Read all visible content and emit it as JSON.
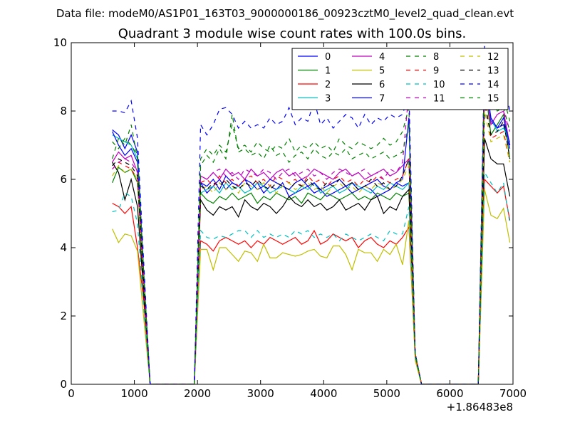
{
  "chart_data": {
    "type": "line",
    "suptitle": "Data file: modeM0/AS1P01_163T03_9000000186_00923cztM0_level2_quad_clean.evt",
    "title": "Quadrant 3 module wise count rates with 100.0s bins.",
    "xlabel": "",
    "ylabel": "",
    "x_offset_label": "+1.86483e8",
    "xlim": [
      0,
      7000
    ],
    "ylim": [
      0,
      10
    ],
    "xticks": [
      0,
      1000,
      2000,
      3000,
      4000,
      5000,
      6000,
      7000
    ],
    "yticks": [
      0,
      2,
      4,
      6,
      8,
      10
    ],
    "grid": false,
    "legend_position": "top-right",
    "legend_columns": 4,
    "x": [
      650,
      750,
      850,
      950,
      1050,
      1150,
      1250,
      1350,
      1450,
      1550,
      1650,
      1750,
      1850,
      1950,
      2050,
      2150,
      2250,
      2350,
      2450,
      2550,
      2650,
      2750,
      2850,
      2950,
      3050,
      3150,
      3250,
      3350,
      3450,
      3550,
      3650,
      3750,
      3850,
      3950,
      4050,
      4150,
      4250,
      4350,
      4450,
      4550,
      4650,
      4750,
      4850,
      4950,
      5050,
      5150,
      5250,
      5350,
      5450,
      5550,
      5650,
      5750,
      5850,
      5950,
      6050,
      6150,
      6250,
      6350,
      6450,
      6550,
      6650,
      6750,
      6850,
      6950
    ],
    "series": [
      {
        "name": "0",
        "color": "#0000ff",
        "dash": "solid",
        "values": [
          7.45,
          7.3,
          6.9,
          7.3,
          6.8,
          3.2,
          0,
          0,
          0,
          0,
          0,
          0,
          0,
          0,
          5.9,
          5.6,
          5.8,
          6.0,
          5.7,
          5.9,
          5.8,
          6.0,
          5.7,
          5.9,
          5.6,
          5.8,
          5.7,
          5.9,
          5.5,
          5.6,
          5.7,
          5.8,
          5.6,
          5.7,
          5.5,
          5.6,
          5.7,
          5.8,
          5.6,
          5.7,
          5.8,
          5.7,
          5.5,
          5.6,
          5.7,
          5.9,
          5.8,
          5.9,
          0.9,
          0,
          0,
          0,
          0,
          0,
          0,
          0,
          0,
          0,
          0,
          9.6,
          7.7,
          7.5,
          7.6,
          6.9
        ]
      },
      {
        "name": "1",
        "color": "#008000",
        "dash": "solid",
        "values": [
          5.9,
          6.35,
          6.2,
          6.3,
          5.9,
          2.8,
          0,
          0,
          0,
          0,
          0,
          0,
          0,
          0,
          5.6,
          5.4,
          5.3,
          5.5,
          5.4,
          5.6,
          5.4,
          5.5,
          5.6,
          5.3,
          5.5,
          5.4,
          5.6,
          5.5,
          5.4,
          5.5,
          5.3,
          5.6,
          5.5,
          5.4,
          5.6,
          5.5,
          5.4,
          5.5,
          5.6,
          5.4,
          5.5,
          5.4,
          5.6,
          5.5,
          5.4,
          5.6,
          5.5,
          5.6,
          0.9,
          0,
          0,
          0,
          0,
          0,
          0,
          0,
          0,
          0,
          0,
          8.9,
          7.3,
          7.6,
          7.9,
          6.6
        ]
      },
      {
        "name": "2",
        "color": "#ff0000",
        "dash": "solid",
        "values": [
          5.3,
          5.2,
          5.0,
          5.2,
          4.0,
          2.4,
          0,
          0,
          0,
          0,
          0,
          0,
          0,
          0,
          4.2,
          4.1,
          3.9,
          4.2,
          4.3,
          4.2,
          4.1,
          4.2,
          4.0,
          4.2,
          4.1,
          4.3,
          4.2,
          4.1,
          4.2,
          4.3,
          4.1,
          4.2,
          4.5,
          4.1,
          4.2,
          4.4,
          4.3,
          4.2,
          4.3,
          4.0,
          4.2,
          4.3,
          4.1,
          4.0,
          4.2,
          4.1,
          4.3,
          4.6,
          0.8,
          0,
          0,
          0,
          0,
          0,
          0,
          0,
          0,
          0,
          0,
          6.0,
          5.8,
          5.6,
          5.8,
          4.8
        ]
      },
      {
        "name": "3",
        "color": "#00bfbf",
        "dash": "solid",
        "values": [
          7.3,
          7.2,
          7.1,
          7.0,
          6.6,
          3.0,
          0,
          0,
          0,
          0,
          0,
          0,
          0,
          0,
          5.6,
          5.7,
          5.8,
          5.6,
          5.9,
          5.7,
          5.8,
          5.6,
          5.7,
          5.9,
          5.8,
          5.6,
          5.7,
          5.8,
          5.7,
          5.6,
          5.8,
          5.7,
          5.9,
          5.6,
          5.7,
          5.8,
          5.6,
          5.7,
          5.9,
          5.8,
          5.7,
          5.6,
          5.8,
          5.7,
          5.9,
          5.8,
          5.7,
          5.9,
          0.9,
          0,
          0,
          0,
          0,
          0,
          0,
          0,
          0,
          0,
          0,
          9.2,
          7.8,
          7.4,
          7.5,
          7.1
        ]
      },
      {
        "name": "4",
        "color": "#bf00bf",
        "dash": "solid",
        "values": [
          6.5,
          6.8,
          6.6,
          6.7,
          6.2,
          3.0,
          0,
          0,
          0,
          0,
          0,
          0,
          0,
          0,
          6.1,
          6.0,
          6.2,
          6.0,
          6.3,
          6.1,
          6.2,
          6.0,
          6.3,
          6.1,
          6.2,
          6.0,
          6.2,
          6.3,
          6.1,
          6.2,
          6.0,
          6.1,
          6.3,
          6.2,
          6.1,
          6.0,
          6.2,
          6.3,
          6.1,
          6.2,
          6.0,
          6.1,
          6.2,
          6.3,
          6.1,
          6.2,
          6.4,
          6.6,
          0.9,
          0,
          0,
          0,
          0,
          0,
          0,
          0,
          0,
          0,
          0,
          8.8,
          7.6,
          7.9,
          8.0,
          7.0
        ]
      },
      {
        "name": "5",
        "color": "#bfbf00",
        "dash": "solid",
        "values": [
          4.55,
          4.15,
          4.4,
          4.35,
          3.9,
          1.9,
          0,
          0,
          0,
          0,
          0,
          0,
          0,
          0,
          3.95,
          3.95,
          3.35,
          4.0,
          4.0,
          3.8,
          3.6,
          3.9,
          3.85,
          3.6,
          4.1,
          3.7,
          3.7,
          3.85,
          3.8,
          3.75,
          3.8,
          3.9,
          3.95,
          3.75,
          3.7,
          4.05,
          4.05,
          3.8,
          3.35,
          3.95,
          3.85,
          3.85,
          3.6,
          3.95,
          3.8,
          4.1,
          3.5,
          4.8,
          0.7,
          0,
          0,
          0,
          0,
          0,
          0,
          0,
          0,
          0,
          0,
          5.7,
          4.95,
          4.85,
          5.15,
          4.15
        ]
      },
      {
        "name": "6",
        "color": "#000000",
        "dash": "solid",
        "values": [
          6.5,
          6.2,
          5.4,
          6.0,
          5.2,
          2.6,
          0,
          0,
          0,
          0,
          0,
          0,
          0,
          0,
          5.4,
          5.1,
          4.95,
          5.2,
          5.1,
          5.2,
          4.9,
          5.4,
          5.2,
          5.1,
          5.3,
          5.2,
          5.0,
          5.2,
          5.5,
          5.3,
          5.2,
          5.4,
          5.2,
          5.3,
          5.1,
          5.2,
          5.4,
          5.1,
          5.2,
          5.3,
          5.1,
          5.4,
          5.5,
          5.0,
          5.2,
          5.1,
          5.5,
          5.7,
          0.9,
          0,
          0,
          0,
          0,
          0,
          0,
          0,
          0,
          0,
          0,
          7.2,
          6.6,
          6.45,
          6.45,
          5.5
        ]
      },
      {
        "name": "7",
        "color": "#0000ff",
        "dash": "solid",
        "values": [
          7.4,
          7.0,
          6.7,
          6.9,
          6.5,
          3.1,
          0,
          0,
          0,
          0,
          0,
          0,
          0,
          0,
          5.9,
          5.8,
          6.0,
          5.7,
          6.1,
          5.9,
          5.8,
          6.0,
          5.9,
          5.7,
          5.8,
          6.0,
          5.9,
          5.8,
          5.7,
          5.9,
          6.0,
          5.8,
          5.9,
          5.7,
          5.8,
          5.9,
          6.0,
          5.8,
          5.9,
          5.7,
          5.8,
          5.9,
          6.0,
          5.8,
          5.7,
          5.9,
          6.0,
          7.8,
          0.9,
          0,
          0,
          0,
          0,
          0,
          0,
          0,
          0,
          0,
          0,
          9.0,
          7.8,
          7.5,
          7.8,
          7.0
        ]
      },
      {
        "name": "8",
        "color": "#008000",
        "dash": "dashed",
        "values": [
          6.6,
          7.2,
          7.0,
          7.6,
          6.6,
          3.1,
          0,
          0,
          0,
          0,
          0,
          0,
          0,
          0,
          6.6,
          6.9,
          6.7,
          7.0,
          6.8,
          7.6,
          6.9,
          7.0,
          6.8,
          7.1,
          6.9,
          6.8,
          7.0,
          6.9,
          7.2,
          6.8,
          7.0,
          6.9,
          7.1,
          6.9,
          7.0,
          6.8,
          7.2,
          7.0,
          6.9,
          7.1,
          7.0,
          6.9,
          7.0,
          7.2,
          7.0,
          7.1,
          7.4,
          8.1,
          0.9,
          0,
          0,
          0,
          0,
          0,
          0,
          0,
          0,
          0,
          0,
          8.8,
          8.4,
          8.0,
          8.1,
          7.4
        ]
      },
      {
        "name": "9",
        "color": "#ff0000",
        "dash": "dashed",
        "values": [
          6.3,
          6.5,
          6.4,
          6.3,
          6.0,
          2.8,
          0,
          0,
          0,
          0,
          0,
          0,
          0,
          0,
          5.9,
          6.0,
          5.8,
          6.1,
          5.9,
          6.0,
          5.8,
          6.0,
          6.1,
          5.9,
          6.0,
          5.8,
          6.1,
          6.0,
          5.9,
          6.0,
          5.8,
          6.1,
          5.9,
          6.0,
          5.8,
          6.0,
          6.1,
          5.9,
          6.0,
          5.8,
          6.0,
          5.9,
          6.1,
          6.0,
          5.9,
          6.0,
          6.1,
          6.6,
          0.9,
          0,
          0,
          0,
          0,
          0,
          0,
          0,
          0,
          0,
          0,
          8.4,
          7.2,
          7.3,
          7.4,
          6.5
        ]
      },
      {
        "name": "10",
        "color": "#00bfbf",
        "dash": "dashed",
        "values": [
          5.05,
          5.1,
          5.6,
          5.5,
          4.7,
          2.2,
          0,
          0,
          0,
          0,
          0,
          0,
          0,
          0,
          4.5,
          4.3,
          4.25,
          4.35,
          4.3,
          4.4,
          4.5,
          4.5,
          4.3,
          4.5,
          4.3,
          4.4,
          4.3,
          4.4,
          4.3,
          4.5,
          4.4,
          4.5,
          4.3,
          4.4,
          4.3,
          4.4,
          4.2,
          4.4,
          4.3,
          4.2,
          4.3,
          4.4,
          4.3,
          4.2,
          4.5,
          4.4,
          4.4,
          5.2,
          0.8,
          0,
          0,
          0,
          0,
          0,
          0,
          0,
          0,
          0,
          0,
          6.2,
          5.9,
          5.6,
          5.9,
          4.7
        ]
      },
      {
        "name": "11",
        "color": "#bf00bf",
        "dash": "dashed",
        "values": [
          6.3,
          6.5,
          6.6,
          6.5,
          6.2,
          3.0,
          0,
          0,
          0,
          0,
          0,
          0,
          0,
          0,
          6.1,
          6.0,
          6.2,
          6.3,
          6.1,
          6.2,
          6.0,
          6.3,
          6.2,
          6.1,
          6.3,
          6.2,
          6.0,
          6.2,
          6.3,
          6.1,
          6.2,
          6.3,
          6.1,
          6.2,
          6.0,
          6.2,
          6.3,
          6.2,
          6.1,
          6.2,
          6.3,
          6.1,
          6.2,
          6.0,
          6.3,
          6.2,
          6.5,
          8.6,
          0.9,
          0,
          0,
          0,
          0,
          0,
          0,
          0,
          0,
          0,
          0,
          9.1,
          8.1,
          8.1,
          8.0,
          7.4
        ]
      },
      {
        "name": "12",
        "color": "#bfbf00",
        "dash": "dashed",
        "values": [
          6.1,
          6.4,
          6.2,
          6.3,
          6.0,
          2.9,
          0,
          0,
          0,
          0,
          0,
          0,
          0,
          0,
          5.7,
          5.8,
          5.6,
          5.9,
          5.7,
          5.8,
          5.6,
          5.9,
          5.8,
          5.7,
          5.9,
          5.8,
          5.6,
          5.8,
          5.9,
          5.7,
          5.8,
          5.9,
          5.7,
          5.8,
          5.6,
          5.8,
          5.9,
          5.7,
          5.8,
          5.6,
          5.8,
          5.7,
          5.9,
          5.8,
          5.7,
          5.8,
          6.0,
          6.4,
          0.9,
          0,
          0,
          0,
          0,
          0,
          0,
          0,
          0,
          0,
          0,
          8.0,
          7.1,
          7.2,
          7.3,
          6.5
        ]
      },
      {
        "name": "13",
        "color": "#000000",
        "dash": "dashed",
        "values": [
          6.4,
          6.6,
          6.5,
          6.4,
          6.1,
          2.9,
          0,
          0,
          0,
          0,
          0,
          0,
          0,
          0,
          5.8,
          5.7,
          5.9,
          5.8,
          6.0,
          5.8,
          5.7,
          5.9,
          5.8,
          6.0,
          5.8,
          5.7,
          5.9,
          5.8,
          5.7,
          5.9,
          5.8,
          6.0,
          5.8,
          5.7,
          5.9,
          5.8,
          6.0,
          5.8,
          5.9,
          5.7,
          5.8,
          6.0,
          5.8,
          5.9,
          5.7,
          5.8,
          6.1,
          6.6,
          0.9,
          0,
          0,
          0,
          0,
          0,
          0,
          0,
          0,
          0,
          0,
          8.2,
          7.3,
          7.4,
          7.7,
          6.6
        ]
      },
      {
        "name": "14",
        "color": "#0000ff",
        "dash": "dashed",
        "values": [
          8.0,
          8.0,
          7.95,
          8.3,
          7.2,
          3.5,
          0,
          0,
          0,
          0,
          0,
          0,
          0,
          0,
          7.6,
          7.3,
          7.6,
          8.05,
          8.1,
          7.9,
          7.5,
          7.7,
          7.5,
          7.6,
          7.5,
          7.8,
          7.6,
          7.7,
          8.1,
          7.6,
          7.8,
          7.7,
          8.3,
          7.6,
          7.8,
          7.5,
          7.7,
          7.9,
          7.8,
          7.5,
          7.9,
          7.6,
          7.8,
          7.7,
          7.9,
          7.8,
          7.9,
          8.5,
          0.9,
          0,
          0,
          0,
          0,
          0,
          0,
          0,
          0,
          0,
          0,
          9.9,
          9.1,
          8.5,
          8.9,
          8.0
        ]
      },
      {
        "name": "15",
        "color": "#008000",
        "dash": "dashed",
        "values": [
          7.1,
          6.9,
          7.2,
          7.0,
          6.7,
          3.2,
          0,
          0,
          0,
          0,
          0,
          0,
          0,
          0,
          6.4,
          6.7,
          6.5,
          6.9,
          6.6,
          7.9,
          6.8,
          6.9,
          6.7,
          6.8,
          6.6,
          7.0,
          6.7,
          6.8,
          6.5,
          6.7,
          6.8,
          6.6,
          6.9,
          6.7,
          6.6,
          6.8,
          6.7,
          6.9,
          6.6,
          6.7,
          6.8,
          6.6,
          6.7,
          6.8,
          6.6,
          6.7,
          6.8,
          7.6,
          0.9,
          0,
          0,
          0,
          0,
          0,
          0,
          0,
          0,
          0,
          0,
          9.2,
          8.7,
          8.5,
          8.4,
          7.7
        ]
      }
    ]
  }
}
